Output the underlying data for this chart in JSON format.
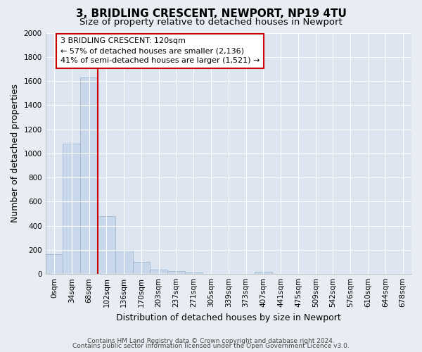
{
  "title": "3, BRIDLING CRESCENT, NEWPORT, NP19 4TU",
  "subtitle": "Size of property relative to detached houses in Newport",
  "xlabel": "Distribution of detached houses by size in Newport",
  "ylabel": "Number of detached properties",
  "bar_color": "#c8d8ea",
  "bar_edge_color": "#a0b8d0",
  "categories": [
    "0sqm",
    "34sqm",
    "68sqm",
    "102sqm",
    "136sqm",
    "170sqm",
    "203sqm",
    "237sqm",
    "271sqm",
    "305sqm",
    "339sqm",
    "373sqm",
    "407sqm",
    "441sqm",
    "475sqm",
    "509sqm",
    "542sqm",
    "576sqm",
    "610sqm",
    "644sqm",
    "678sqm"
  ],
  "values": [
    165,
    1080,
    1630,
    480,
    200,
    100,
    38,
    25,
    15,
    0,
    0,
    0,
    18,
    0,
    0,
    0,
    0,
    0,
    0,
    0,
    0
  ],
  "ylim": [
    0,
    2000
  ],
  "yticks": [
    0,
    200,
    400,
    600,
    800,
    1000,
    1200,
    1400,
    1600,
    1800,
    2000
  ],
  "red_line_bin": 3,
  "annotation_text": "3 BRIDLING CRESCENT: 120sqm\n← 57% of detached houses are smaller (2,136)\n41% of semi-detached houses are larger (1,521) →",
  "annotation_box_facecolor": "#ffffff",
  "annotation_box_edgecolor": "#cc0000",
  "red_line_color": "#cc0000",
  "footer_line1": "Contains HM Land Registry data © Crown copyright and database right 2024.",
  "footer_line2": "Contains public sector information licensed under the Open Government Licence v3.0.",
  "bg_color": "#e8edf3",
  "plot_bg_color": "#dce5f0",
  "grid_color": "#ffffff",
  "title_fontsize": 11,
  "subtitle_fontsize": 9.5,
  "axis_label_fontsize": 9,
  "tick_fontsize": 7.5,
  "annotation_fontsize": 8,
  "footer_fontsize": 6.5
}
